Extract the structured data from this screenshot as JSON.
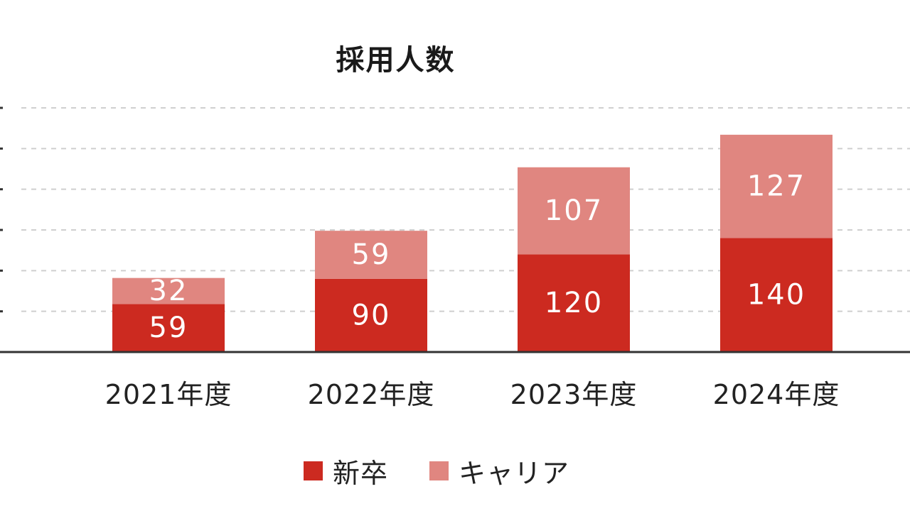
{
  "chart_data": {
    "type": "bar",
    "stacked": true,
    "title": "採用人数",
    "categories": [
      "2021年度",
      "2022年度",
      "2023年度",
      "2024年度"
    ],
    "series": [
      {
        "name": "新卒",
        "values": [
          59,
          90,
          120,
          140
        ],
        "color": "#cc2a20"
      },
      {
        "name": "キャリア",
        "values": [
          32,
          59,
          107,
          127
        ],
        "color": "#e08680"
      }
    ],
    "ylim": [
      0,
      300
    ],
    "grid": true,
    "legend_position": "bottom"
  }
}
